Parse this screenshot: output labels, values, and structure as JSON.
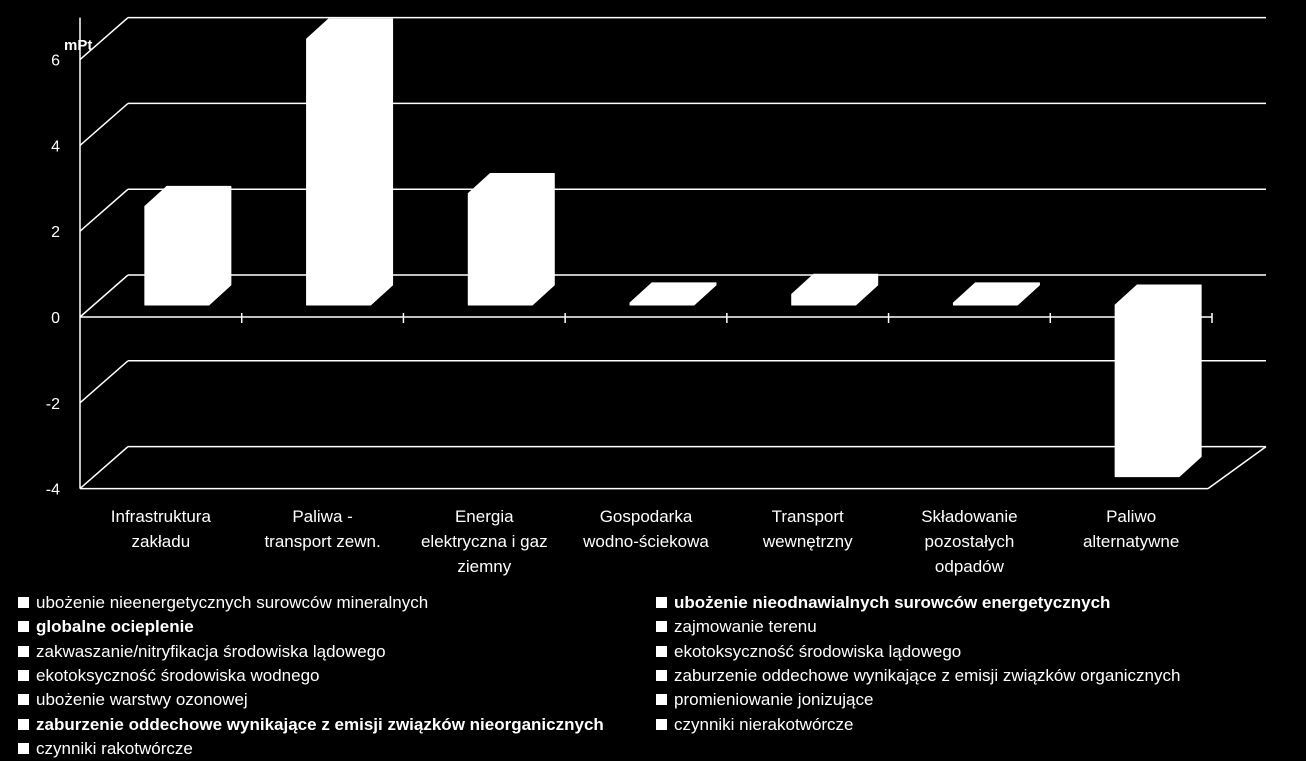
{
  "chart_data": {
    "type": "bar",
    "unit_label": "mPt",
    "ylim": [
      -4,
      6
    ],
    "yticks": [
      6,
      4,
      2,
      0,
      -2,
      -4
    ],
    "categories": [
      [
        "Infrastruktura",
        "zakładu"
      ],
      [
        "Paliwa -",
        "transport zewn."
      ],
      [
        "Energia",
        "elektryczna i gaz",
        "ziemny"
      ],
      [
        "Gospodarka",
        "wodno-ściekowa"
      ],
      [
        "Transport",
        "wewnętrzny"
      ],
      [
        "Składowanie",
        "pozostałych",
        "odpadów"
      ],
      [
        "Paliwo",
        "alternatywne"
      ]
    ],
    "values": [
      2.3,
      6.2,
      2.6,
      0.05,
      0.25,
      0.05,
      -4.0
    ],
    "grid": true,
    "bar_color": "#ffffff",
    "legend": [
      {
        "label": "ubożenie nieenergetycznych surowców mineralnych",
        "bold": false
      },
      {
        "label": "ubożenie nieodnawialnych surowców energetycznych",
        "bold": true
      },
      {
        "label": "globalne ocieplenie",
        "bold": true
      },
      {
        "label": "zajmowanie terenu",
        "bold": false
      },
      {
        "label": "zakwaszanie/nitryfikacja środowiska lądowego",
        "bold": false
      },
      {
        "label": "ekotoksyczność środowiska lądowego",
        "bold": false
      },
      {
        "label": "ekotoksyczność środowiska wodnego",
        "bold": false
      },
      {
        "label": "zaburzenie oddechowe wynikające z emisji związków organicznych",
        "bold": false
      },
      {
        "label": "ubożenie warstwy ozonowej",
        "bold": false
      },
      {
        "label": "promieniowanie jonizujące",
        "bold": false
      },
      {
        "label": "zaburzenie oddechowe wynikające z emisji związków nieorganicznych",
        "bold": true
      },
      {
        "label": "czynniki nierakotwórcze",
        "bold": false
      },
      {
        "label": "czynniki rakotwórcze",
        "bold": false
      }
    ]
  }
}
